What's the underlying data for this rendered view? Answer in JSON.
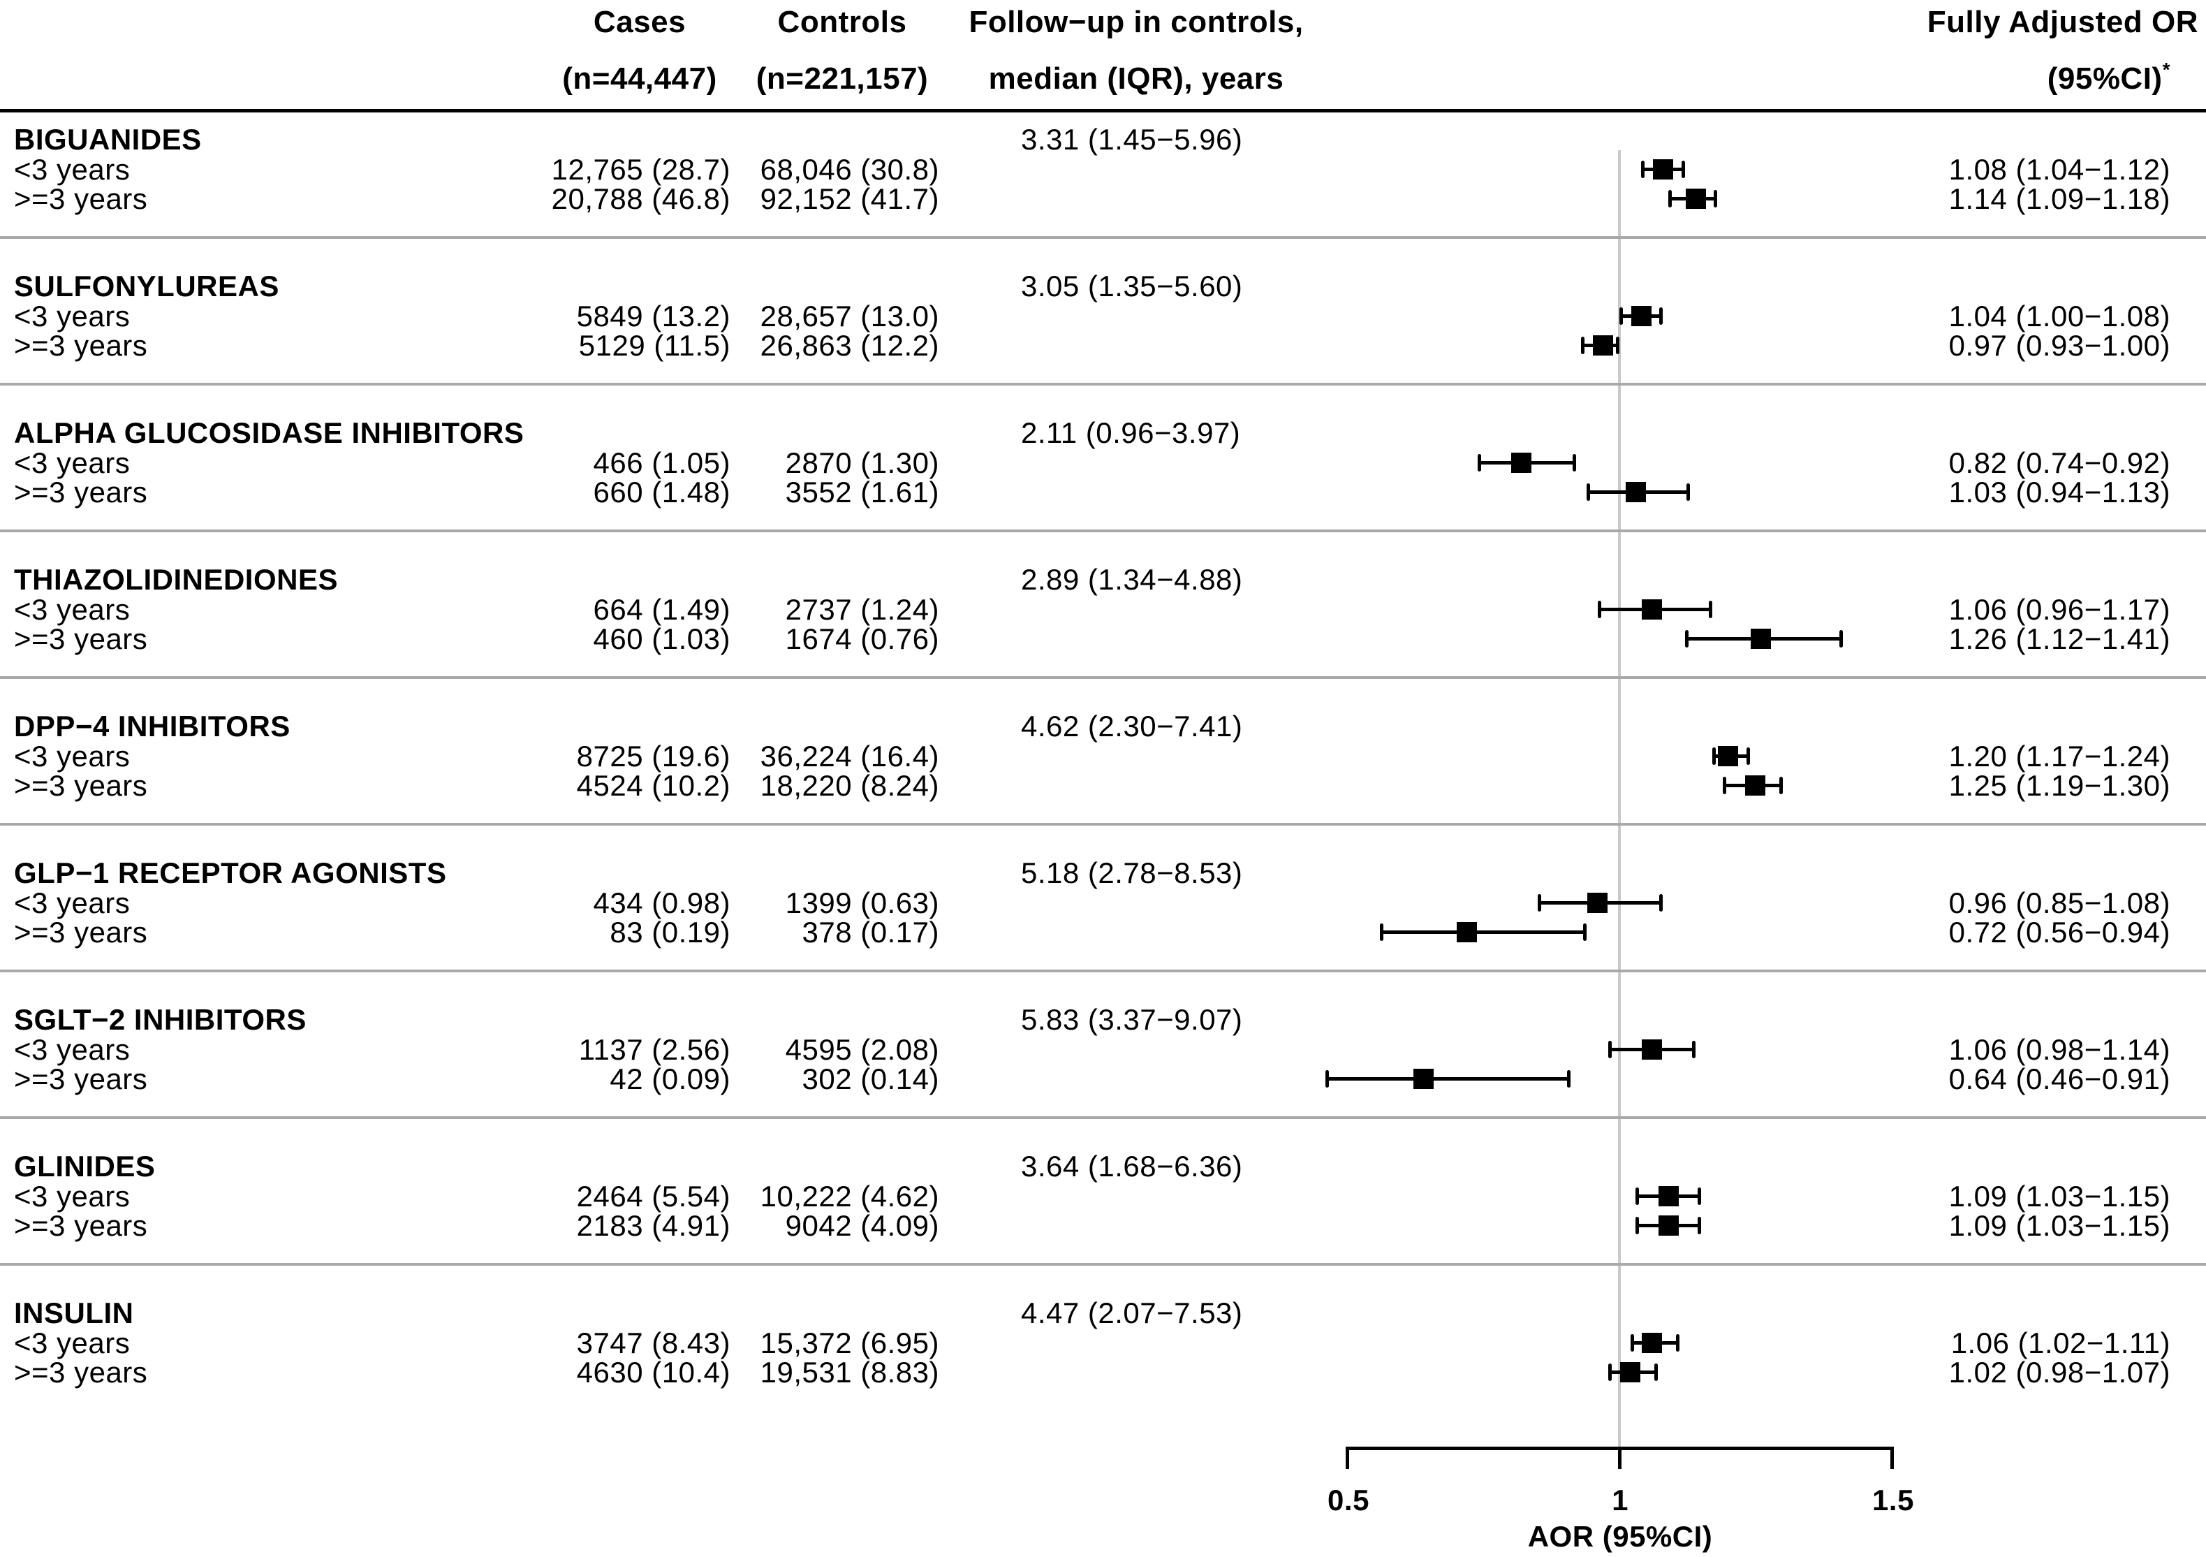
{
  "header": {
    "cases1": "Cases",
    "cases2": "(n=44,447)",
    "controls1": "Controls",
    "controls2": "(n=221,157)",
    "followup1": "Follow−up in controls,",
    "followup2": "median (IQR), years",
    "or1": "Fully Adjusted OR",
    "or2": "(95%CI)",
    "footnote_marker": "*"
  },
  "axis": {
    "label": "AOR (95%CI)",
    "ticks": [
      "0.5",
      "1",
      "1.5"
    ],
    "tick_values": [
      0.5,
      1,
      1.5
    ],
    "range": [
      0.5,
      1.5
    ],
    "reference_line_x": 1
  },
  "colors": {
    "marker": "#000000",
    "reference_line": "#c9c9c9",
    "section_separator": "#a9a9a9",
    "header_rule": "#000000",
    "background": "#ffffff"
  },
  "chart_data": {
    "type": "scatter",
    "subtype": "forest-plot",
    "xlabel": "AOR (95%CI)",
    "xlim": [
      0.5,
      1.5
    ],
    "x_ticks": [
      0.5,
      1,
      1.5
    ],
    "reference_line_x": 1,
    "grid": false,
    "groups": [
      {
        "name": "BIGUANIDES",
        "followup": "3.31 (1.45−5.96)",
        "rows": [
          {
            "label": "<3 years",
            "cases": "12,765 (28.7)",
            "controls": "68,046 (30.8)",
            "or": 1.08,
            "ci": [
              1.04,
              1.12
            ],
            "or_text": "1.08 (1.04−1.12)"
          },
          {
            "label": ">=3 years",
            "cases": "20,788 (46.8)",
            "controls": "92,152 (41.7)",
            "or": 1.14,
            "ci": [
              1.09,
              1.18
            ],
            "or_text": "1.14 (1.09−1.18)"
          }
        ]
      },
      {
        "name": "SULFONYLUREAS",
        "followup": "3.05 (1.35−5.60)",
        "rows": [
          {
            "label": "<3 years",
            "cases": "5849 (13.2)",
            "controls": "28,657 (13.0)",
            "or": 1.04,
            "ci": [
              1.0,
              1.08
            ],
            "or_text": "1.04 (1.00−1.08)"
          },
          {
            "label": ">=3 years",
            "cases": "5129 (11.5)",
            "controls": "26,863 (12.2)",
            "or": 0.97,
            "ci": [
              0.93,
              1.0
            ],
            "or_text": "0.97 (0.93−1.00)"
          }
        ]
      },
      {
        "name": "ALPHA GLUCOSIDASE INHIBITORS",
        "followup": "2.11 (0.96−3.97)",
        "rows": [
          {
            "label": "<3 years",
            "cases": "466 (1.05)",
            "controls": "2870 (1.30)",
            "or": 0.82,
            "ci": [
              0.74,
              0.92
            ],
            "or_text": "0.82 (0.74−0.92)"
          },
          {
            "label": ">=3 years",
            "cases": "660 (1.48)",
            "controls": "3552 (1.61)",
            "or": 1.03,
            "ci": [
              0.94,
              1.13
            ],
            "or_text": "1.03 (0.94−1.13)"
          }
        ]
      },
      {
        "name": "THIAZOLIDINEDIONES",
        "followup": "2.89 (1.34−4.88)",
        "rows": [
          {
            "label": "<3 years",
            "cases": "664 (1.49)",
            "controls": "2737 (1.24)",
            "or": 1.06,
            "ci": [
              0.96,
              1.17
            ],
            "or_text": "1.06 (0.96−1.17)"
          },
          {
            "label": ">=3 years",
            "cases": "460 (1.03)",
            "controls": "1674 (0.76)",
            "or": 1.26,
            "ci": [
              1.12,
              1.41
            ],
            "or_text": "1.26 (1.12−1.41)"
          }
        ]
      },
      {
        "name": "DPP−4 INHIBITORS",
        "followup": "4.62 (2.30−7.41)",
        "rows": [
          {
            "label": "<3 years",
            "cases": "8725 (19.6)",
            "controls": "36,224 (16.4)",
            "or": 1.2,
            "ci": [
              1.17,
              1.24
            ],
            "or_text": "1.20 (1.17−1.24)"
          },
          {
            "label": ">=3 years",
            "cases": "4524 (10.2)",
            "controls": "18,220 (8.24)",
            "or": 1.25,
            "ci": [
              1.19,
              1.3
            ],
            "or_text": "1.25 (1.19−1.30)"
          }
        ]
      },
      {
        "name": "GLP−1 RECEPTOR AGONISTS",
        "followup": "5.18 (2.78−8.53)",
        "rows": [
          {
            "label": "<3 years",
            "cases": "434 (0.98)",
            "controls": "1399 (0.63)",
            "or": 0.96,
            "ci": [
              0.85,
              1.08
            ],
            "or_text": "0.96 (0.85−1.08)"
          },
          {
            "label": ">=3 years",
            "cases": "83 (0.19)",
            "controls": "378 (0.17)",
            "or": 0.72,
            "ci": [
              0.56,
              0.94
            ],
            "or_text": "0.72 (0.56−0.94)"
          }
        ]
      },
      {
        "name": "SGLT−2 INHIBITORS",
        "followup": "5.83 (3.37−9.07)",
        "rows": [
          {
            "label": "<3 years",
            "cases": "1137 (2.56)",
            "controls": "4595 (2.08)",
            "or": 1.06,
            "ci": [
              0.98,
              1.14
            ],
            "or_text": "1.06 (0.98−1.14)"
          },
          {
            "label": ">=3 years",
            "cases": "42 (0.09)",
            "controls": "302 (0.14)",
            "or": 0.64,
            "ci": [
              0.46,
              0.91
            ],
            "or_text": "0.64 (0.46−0.91)"
          }
        ]
      },
      {
        "name": "GLINIDES",
        "followup": "3.64 (1.68−6.36)",
        "rows": [
          {
            "label": "<3 years",
            "cases": "2464 (5.54)",
            "controls": "10,222 (4.62)",
            "or": 1.09,
            "ci": [
              1.03,
              1.15
            ],
            "or_text": "1.09 (1.03−1.15)"
          },
          {
            "label": ">=3 years",
            "cases": "2183 (4.91)",
            "controls": "9042 (4.09)",
            "or": 1.09,
            "ci": [
              1.03,
              1.15
            ],
            "or_text": "1.09 (1.03−1.15)"
          }
        ]
      },
      {
        "name": "INSULIN",
        "followup": "4.47 (2.07−7.53)",
        "rows": [
          {
            "label": "<3 years",
            "cases": "3747 (8.43)",
            "controls": "15,372 (6.95)",
            "or": 1.06,
            "ci": [
              1.02,
              1.11
            ],
            "or_text": "1.06 (1.02−1.11)"
          },
          {
            "label": ">=3 years",
            "cases": "4630 (10.4)",
            "controls": "19,531 (8.83)",
            "or": 1.02,
            "ci": [
              0.98,
              1.07
            ],
            "or_text": "1.02 (0.98−1.07)"
          }
        ]
      }
    ]
  }
}
